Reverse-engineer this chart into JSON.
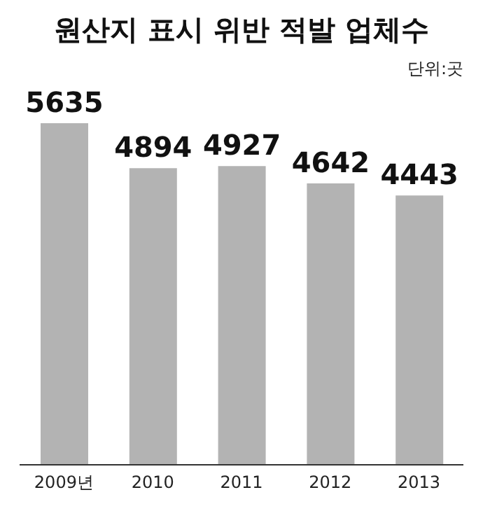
{
  "chart_data": {
    "type": "bar",
    "title": "원산지 표시 위반 적발 업체수",
    "annotations": [
      "단위:곳"
    ],
    "categories": [
      "2009년",
      "2010",
      "2011",
      "2012",
      "2013"
    ],
    "values": [
      5635,
      4894,
      4927,
      4642,
      4443
    ],
    "color": "#b3b3b3",
    "data_labels": true,
    "grid": false,
    "legend": false
  }
}
